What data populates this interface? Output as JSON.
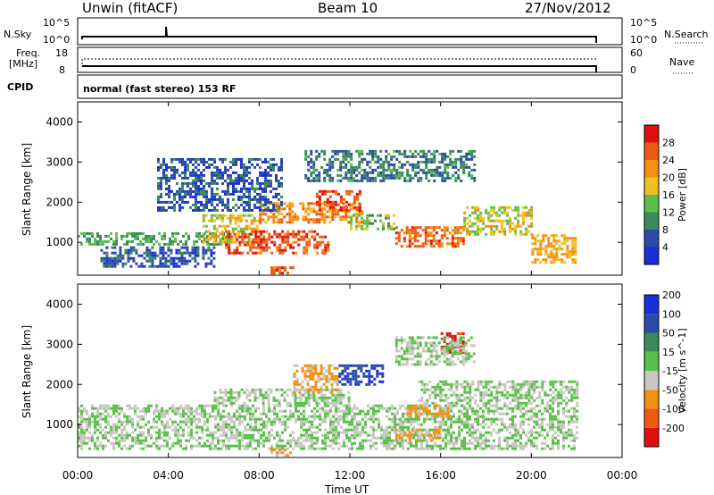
{
  "header": {
    "station": "Unwin (fitACF)",
    "beam": "Beam 10",
    "date": "27/Nov/2012"
  },
  "panels": {
    "nsky": {
      "label": "N.Sky",
      "ticks": [
        "10^5",
        "10^0"
      ],
      "right_label": "N.Search"
    },
    "freq": {
      "label_line1": "Freq.",
      "label_line2": "[MHz]",
      "ticks_left": [
        "18",
        "8"
      ],
      "ticks_right": [
        "60",
        "0"
      ],
      "right_label": "Nave"
    },
    "cpid": {
      "label": "CPID",
      "text": "normal (fast stereo) 153 RF"
    }
  },
  "x_ticks": [
    "00:00",
    "04:00",
    "08:00",
    "12:00",
    "16:00",
    "20:00",
    "00:00"
  ],
  "y_ticks": [
    "1000",
    "2000",
    "3000",
    "4000"
  ],
  "colors": {
    "power": [
      "#1a2fd6",
      "#2c4aa8",
      "#3a8a5a",
      "#5bbf4c",
      "#f0c020",
      "#f39010",
      "#ef5a10",
      "#e01010"
    ],
    "velocity": [
      "#e01010",
      "#ef5a10",
      "#f39010",
      "#c8c8c0",
      "#5bbf4c",
      "#3a8a5a",
      "#2c4aa8",
      "#1a2fd6"
    ]
  },
  "chart_data": [
    {
      "type": "heatmap",
      "title": "",
      "xlabel": "",
      "ylabel": "Slant Range [km]",
      "xlim": [
        0,
        24
      ],
      "ylim": [
        180,
        4500
      ],
      "colorbar": {
        "label": "Power [dB]",
        "ticks": [
          "4",
          "8",
          "12",
          "16",
          "20",
          "24",
          "28"
        ],
        "range": [
          0,
          32
        ]
      },
      "regions": [
        {
          "t0": 0.0,
          "t1": 6.5,
          "r0": 950,
          "r1": 1250,
          "level": 12
        },
        {
          "t0": 1.0,
          "t1": 6.0,
          "r0": 400,
          "r1": 900,
          "level": 6
        },
        {
          "t0": 5.5,
          "t1": 8.0,
          "r0": 1000,
          "r1": 1700,
          "level": 18
        },
        {
          "t0": 6.5,
          "t1": 11.0,
          "r0": 750,
          "r1": 1300,
          "level": 27
        },
        {
          "t0": 8.5,
          "t1": 9.5,
          "r0": 200,
          "r1": 400,
          "level": 26
        },
        {
          "t0": 8.0,
          "t1": 12.5,
          "r0": 1500,
          "r1": 2000,
          "level": 22
        },
        {
          "t0": 10.5,
          "t1": 12.5,
          "r0": 1800,
          "r1": 2300,
          "level": 27
        },
        {
          "t0": 12.0,
          "t1": 14.0,
          "r0": 1300,
          "r1": 1700,
          "level": 14
        },
        {
          "t0": 14.0,
          "t1": 17.0,
          "r0": 900,
          "r1": 1400,
          "level": 25
        },
        {
          "t0": 17.0,
          "t1": 20.0,
          "r0": 1200,
          "r1": 1900,
          "level": 17
        },
        {
          "t0": 20.0,
          "t1": 22.0,
          "r0": 500,
          "r1": 1200,
          "level": 20
        },
        {
          "t0": 10.0,
          "t1": 17.5,
          "r0": 2500,
          "r1": 3300,
          "level": 9
        },
        {
          "t0": 3.5,
          "t1": 9.0,
          "r0": 1800,
          "r1": 3100,
          "level": 6
        }
      ]
    },
    {
      "type": "heatmap",
      "title": "",
      "xlabel": "Time UT",
      "ylabel": "Slant Range [km]",
      "xlim": [
        0,
        24
      ],
      "ylim": [
        180,
        4500
      ],
      "colorbar": {
        "label": "Velocity [m s^-1]",
        "ticks": [
          "-200",
          "-100",
          "-50",
          "-15",
          "15",
          "50",
          "100",
          "200"
        ],
        "range": [
          -250,
          250
        ]
      },
      "regions": [
        {
          "t0": 0.0,
          "t1": 22.0,
          "r0": 400,
          "r1": 1500,
          "level": 0
        },
        {
          "t0": 6.0,
          "t1": 12.0,
          "r0": 1500,
          "r1": 1900,
          "level": 0
        },
        {
          "t0": 15.0,
          "t1": 22.0,
          "r0": 1500,
          "r1": 2100,
          "level": 0
        },
        {
          "t0": 9.5,
          "t1": 11.5,
          "r0": 1800,
          "r1": 2500,
          "level": -70
        },
        {
          "t0": 11.5,
          "t1": 13.5,
          "r0": 2000,
          "r1": 2500,
          "level": 180
        },
        {
          "t0": 14.0,
          "t1": 16.0,
          "r0": 600,
          "r1": 900,
          "level": -70
        },
        {
          "t0": 14.5,
          "t1": 16.5,
          "r0": 1200,
          "r1": 1500,
          "level": -70
        },
        {
          "t0": 16.0,
          "t1": 17.0,
          "r0": 2800,
          "r1": 3300,
          "level": -200
        },
        {
          "t0": 8.5,
          "t1": 9.5,
          "r0": 200,
          "r1": 400,
          "level": -70
        },
        {
          "t0": 14.0,
          "t1": 17.5,
          "r0": 2500,
          "r1": 3200,
          "level": 0
        }
      ]
    }
  ]
}
